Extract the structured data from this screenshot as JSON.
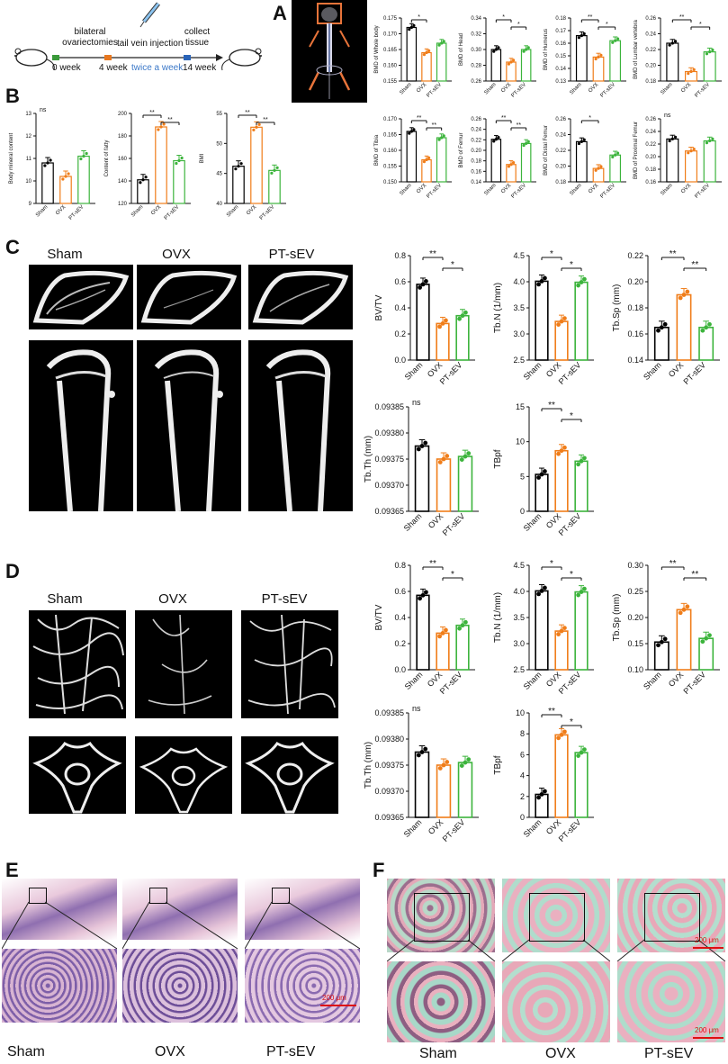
{
  "panels": {
    "A": "A",
    "B": "B",
    "C": "C",
    "D": "D",
    "E": "E",
    "F": "F"
  },
  "timeline": {
    "steps": [
      "bilateral\novariectomies",
      "tail vein injection",
      "collect\ntissue"
    ],
    "weeks": [
      "0 week",
      "4 week",
      "14 week"
    ],
    "freq": "twice a week"
  },
  "colors": {
    "sham": "#000000",
    "ovx": "#f07d19",
    "ptsev": "#3cb43c",
    "scalebar": "#dd1010"
  },
  "groups": [
    "Sham",
    "OVX",
    "PT-sEV"
  ],
  "scale_bar": "200 μm",
  "panel_C": {
    "labels": [
      "Sham",
      "OVX",
      "PT-sEV"
    ]
  },
  "panel_D": {
    "labels": [
      "Sham",
      "OVX",
      "PT-sEV"
    ]
  },
  "panel_E": {
    "labels": [
      "Sham",
      "OVX",
      "PT-sEV"
    ]
  },
  "panel_F": {
    "labels": [
      "Sham",
      "OVX",
      "PT-sEV"
    ]
  },
  "chart_data": [
    {
      "id": "A1",
      "type": "bar",
      "ylabel": "BMD of Whole body",
      "ylim": [
        0.155,
        0.175
      ],
      "ticks": [
        "0.155",
        "0.160",
        "0.165",
        "0.170",
        "0.175"
      ],
      "values": [
        0.172,
        0.164,
        0.167
      ],
      "sig": [
        {
          "a": 0,
          "b": 1,
          "t": "*"
        }
      ]
    },
    {
      "id": "A2",
      "type": "bar",
      "ylabel": "BMD of Head",
      "ylim": [
        0.26,
        0.34
      ],
      "ticks": [
        "0.26",
        "0.28",
        "0.30",
        "0.32",
        "0.34"
      ],
      "values": [
        0.3,
        0.284,
        0.3
      ],
      "sig": [
        {
          "a": 0,
          "b": 1,
          "t": "*"
        },
        {
          "a": 1,
          "b": 2,
          "t": "*"
        }
      ]
    },
    {
      "id": "A3",
      "type": "bar",
      "ylabel": "BMD of Humerus",
      "ylim": [
        0.13,
        0.18
      ],
      "ticks": [
        "0.13",
        "0.14",
        "0.15",
        "0.16",
        "0.17",
        "0.18"
      ],
      "values": [
        0.166,
        0.149,
        0.162
      ],
      "sig": [
        {
          "a": 0,
          "b": 1,
          "t": "**"
        },
        {
          "a": 1,
          "b": 2,
          "t": "*"
        }
      ]
    },
    {
      "id": "A4",
      "type": "bar",
      "ylabel": "BMD of Lumbar vertebra",
      "ylim": [
        0.18,
        0.26
      ],
      "ticks": [
        "0.18",
        "0.20",
        "0.22",
        "0.24",
        "0.26"
      ],
      "values": [
        0.228,
        0.192,
        0.217
      ],
      "sig": [
        {
          "a": 0,
          "b": 1,
          "t": "**"
        },
        {
          "a": 1,
          "b": 2,
          "t": "*"
        }
      ]
    },
    {
      "id": "A5",
      "type": "bar",
      "ylabel": "BMD of Tibia",
      "ylim": [
        0.15,
        0.17
      ],
      "ticks": [
        "0.150",
        "0.155",
        "0.160",
        "0.165",
        "0.170"
      ],
      "values": [
        0.166,
        0.157,
        0.164
      ],
      "sig": [
        {
          "a": 0,
          "b": 1,
          "t": "**"
        },
        {
          "a": 1,
          "b": 2,
          "t": "**"
        }
      ]
    },
    {
      "id": "A6",
      "type": "bar",
      "ylabel": "BMD of Femur",
      "ylim": [
        0.14,
        0.26
      ],
      "ticks": [
        "0.14",
        "0.16",
        "0.18",
        "0.20",
        "0.22",
        "0.24",
        "0.26"
      ],
      "values": [
        0.221,
        0.173,
        0.213
      ],
      "sig": [
        {
          "a": 0,
          "b": 1,
          "t": "**"
        },
        {
          "a": 1,
          "b": 2,
          "t": "**"
        }
      ]
    },
    {
      "id": "A7",
      "type": "bar",
      "ylabel": "BMD of Distal Femur",
      "ylim": [
        0.18,
        0.26
      ],
      "ticks": [
        "0.18",
        "0.20",
        "0.22",
        "0.24",
        "0.26"
      ],
      "values": [
        0.231,
        0.197,
        0.214
      ],
      "sig": [
        {
          "a": 0,
          "b": 1,
          "t": "*"
        }
      ]
    },
    {
      "id": "A8",
      "type": "bar",
      "ylabel": "BMD of Proximal Femur",
      "ylim": [
        0.16,
        0.26
      ],
      "ticks": [
        "0.16",
        "0.18",
        "0.20",
        "0.22",
        "0.24",
        "0.26"
      ],
      "values": [
        0.228,
        0.209,
        0.225
      ],
      "sig": [
        {
          "a": -1,
          "b": -1,
          "t": "ns"
        }
      ]
    },
    {
      "id": "B1",
      "type": "bar",
      "ylabel": "Body mineral content",
      "ylim": [
        9,
        13
      ],
      "ticks": [
        "9",
        "10",
        "11",
        "12",
        "13"
      ],
      "values": [
        10.8,
        10.2,
        11.1
      ],
      "sig": [
        {
          "a": -1,
          "b": -1,
          "t": "ns"
        }
      ]
    },
    {
      "id": "B2",
      "type": "bar",
      "ylabel": "Content of fatty",
      "ylim": [
        120,
        200
      ],
      "ticks": [
        "120",
        "140",
        "160",
        "180",
        "200"
      ],
      "values": [
        141,
        188,
        158
      ],
      "sig": [
        {
          "a": 0,
          "b": 1,
          "t": "**"
        },
        {
          "a": 1,
          "b": 2,
          "t": "**"
        }
      ]
    },
    {
      "id": "B3",
      "type": "bar",
      "ylabel": "BMI",
      "ylim": [
        40,
        55
      ],
      "ticks": [
        "40",
        "45",
        "50",
        "55"
      ],
      "values": [
        46.2,
        52.7,
        45.5
      ],
      "sig": [
        {
          "a": 0,
          "b": 1,
          "t": "**"
        },
        {
          "a": 1,
          "b": 2,
          "t": "**"
        }
      ]
    },
    {
      "id": "C1",
      "type": "bar",
      "ylabel": "BV/TV",
      "ylim": [
        0,
        0.8
      ],
      "ticks": [
        "0.0",
        "0.2",
        "0.4",
        "0.6",
        "0.8"
      ],
      "values": [
        0.58,
        0.28,
        0.34
      ],
      "sig": [
        {
          "a": 0,
          "b": 1,
          "t": "**"
        },
        {
          "a": 1,
          "b": 2,
          "t": "*"
        }
      ]
    },
    {
      "id": "C2",
      "type": "bar",
      "ylabel": "Tb.N (1/mm)",
      "ylim": [
        2.5,
        4.5
      ],
      "ticks": [
        "2.5",
        "3.0",
        "3.5",
        "4.0",
        "4.5"
      ],
      "values": [
        4.01,
        3.24,
        3.99
      ],
      "sig": [
        {
          "a": 0,
          "b": 1,
          "t": "*"
        },
        {
          "a": 1,
          "b": 2,
          "t": "*"
        }
      ]
    },
    {
      "id": "C3",
      "type": "bar",
      "ylabel": "Tb.Sp (mm)",
      "ylim": [
        0.14,
        0.22
      ],
      "ticks": [
        "0.14",
        "0.16",
        "0.18",
        "0.20",
        "0.22"
      ],
      "values": [
        0.165,
        0.19,
        0.165
      ],
      "sig": [
        {
          "a": 0,
          "b": 1,
          "t": "**"
        },
        {
          "a": 1,
          "b": 2,
          "t": "**"
        }
      ]
    },
    {
      "id": "C4",
      "type": "bar",
      "ylabel": "Tb.Th (mm)",
      "ylim": [
        0.09365,
        0.09385
      ],
      "ticks": [
        "0.09365",
        "0.09370",
        "0.09375",
        "0.09380",
        "0.09385"
      ],
      "values": [
        0.093775,
        0.09375,
        0.093755
      ],
      "sig": [
        {
          "a": -1,
          "b": -1,
          "t": "ns"
        }
      ]
    },
    {
      "id": "C5",
      "type": "bar",
      "ylabel": "TBpf",
      "ylim": [
        0,
        15
      ],
      "ticks": [
        "0",
        "5",
        "10",
        "15"
      ],
      "values": [
        5.3,
        8.7,
        7.2
      ],
      "sig": [
        {
          "a": 0,
          "b": 1,
          "t": "**"
        },
        {
          "a": 1,
          "b": 2,
          "t": "*"
        }
      ]
    },
    {
      "id": "D1",
      "type": "bar",
      "ylabel": "BV/TV",
      "ylim": [
        0,
        0.8
      ],
      "ticks": [
        "0.0",
        "0.2",
        "0.4",
        "0.6",
        "0.8"
      ],
      "values": [
        0.57,
        0.28,
        0.34
      ],
      "sig": [
        {
          "a": 0,
          "b": 1,
          "t": "**"
        },
        {
          "a": 1,
          "b": 2,
          "t": "*"
        }
      ]
    },
    {
      "id": "D2",
      "type": "bar",
      "ylabel": "Tb.N (1/mm)",
      "ylim": [
        2.5,
        4.5
      ],
      "ticks": [
        "2.5",
        "3.0",
        "3.5",
        "4.0",
        "4.5"
      ],
      "values": [
        4.01,
        3.24,
        3.99
      ],
      "sig": [
        {
          "a": 0,
          "b": 1,
          "t": "*"
        },
        {
          "a": 1,
          "b": 2,
          "t": "*"
        }
      ]
    },
    {
      "id": "D3",
      "type": "bar",
      "ylabel": "Tb.Sp (mm)",
      "ylim": [
        0.1,
        0.3
      ],
      "ticks": [
        "0.10",
        "0.15",
        "0.20",
        "0.25",
        "0.30"
      ],
      "values": [
        0.153,
        0.215,
        0.16
      ],
      "sig": [
        {
          "a": 0,
          "b": 1,
          "t": "**"
        },
        {
          "a": 1,
          "b": 2,
          "t": "**"
        }
      ]
    },
    {
      "id": "D4",
      "type": "bar",
      "ylabel": "Tb.Th (mm)",
      "ylim": [
        0.09365,
        0.09385
      ],
      "ticks": [
        "0.09365",
        "0.09370",
        "0.09375",
        "0.09380",
        "0.09385"
      ],
      "values": [
        0.093775,
        0.09375,
        0.093755
      ],
      "sig": [
        {
          "a": -1,
          "b": -1,
          "t": "ns"
        }
      ]
    },
    {
      "id": "D5",
      "type": "bar",
      "ylabel": "TBpf",
      "ylim": [
        0,
        10
      ],
      "ticks": [
        "0",
        "2",
        "4",
        "6",
        "8",
        "10"
      ],
      "values": [
        2.2,
        7.9,
        6.2
      ],
      "sig": [
        {
          "a": 0,
          "b": 1,
          "t": "**"
        },
        {
          "a": 1,
          "b": 2,
          "t": "*"
        }
      ]
    }
  ]
}
